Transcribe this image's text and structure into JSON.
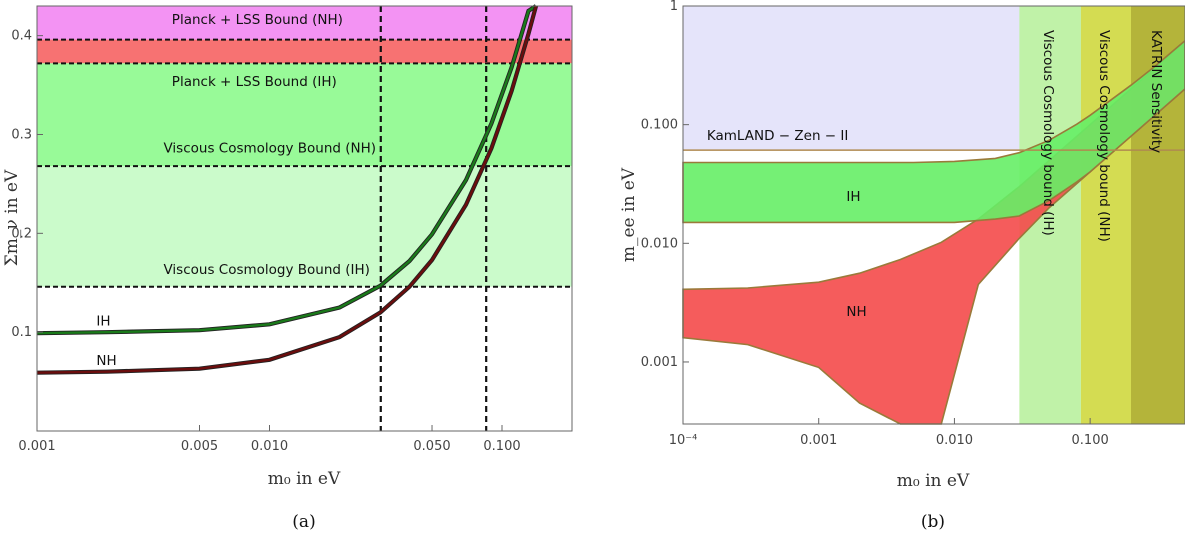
{
  "chart_data": [
    {
      "id": "a",
      "type": "line",
      "caption": "(a)",
      "xlabel": "m₀ in eV",
      "ylabel": "Σm_ν in eV",
      "xscale": "log",
      "xlim": [
        0.001,
        0.2
      ],
      "ylim": [
        0.0,
        0.43
      ],
      "grid": false,
      "xticks": [
        {
          "v": 0.001,
          "t": "0.001"
        },
        {
          "v": 0.005,
          "t": "0.005"
        },
        {
          "v": 0.01,
          "t": "0.010"
        },
        {
          "v": 0.05,
          "t": "0.050"
        },
        {
          "v": 0.1,
          "t": "0.100"
        }
      ],
      "yticks": [
        {
          "v": 0.1,
          "t": "0.1"
        },
        {
          "v": 0.2,
          "t": "0.2"
        },
        {
          "v": 0.3,
          "t": "0.3"
        },
        {
          "v": 0.4,
          "t": "0.4"
        }
      ],
      "bands": [
        {
          "name": "Planck + LSS Bound (NH)",
          "y": [
            0.396,
            0.43
          ],
          "color": "#f393f3",
          "label_at": [
            0.0038,
            0.417
          ]
        },
        {
          "name": "",
          "y": [
            0.372,
            0.396
          ],
          "color": "#f77272"
        },
        {
          "name": "Planck + LSS Bound (IH)",
          "y": [
            0.268,
            0.372
          ],
          "color": "#98fa98",
          "label_at": [
            0.0038,
            0.354
          ]
        },
        {
          "name": "Viscous Cosmology Bound (NH)",
          "y": [
            0.146,
            0.268
          ],
          "color": "#cbfbcb",
          "label_at": [
            0.0035,
            0.287
          ]
        },
        {
          "name": "Viscous Cosmology Bound (IH)",
          "y": [
            0,
            0
          ],
          "color": "none",
          "label_at": [
            0.0035,
            0.164
          ]
        }
      ],
      "hlines": [
        0.396,
        0.372,
        0.268,
        0.146
      ],
      "vlines": [
        0.0301,
        0.0855
      ],
      "series": [
        {
          "name": "IH",
          "color": "#1a7a1a",
          "label_at": [
            0.0018,
            0.112
          ],
          "x": [
            0.001,
            0.002,
            0.005,
            0.01,
            0.02,
            0.03,
            0.04,
            0.05,
            0.07,
            0.09,
            0.11,
            0.13,
            0.14
          ],
          "y": [
            0.099,
            0.1,
            0.102,
            0.108,
            0.125,
            0.147,
            0.172,
            0.199,
            0.254,
            0.311,
            0.368,
            0.425,
            0.43
          ]
        },
        {
          "name": "NH",
          "color": "#6b0d0d",
          "label_at": [
            0.0018,
            0.072
          ],
          "x": [
            0.001,
            0.002,
            0.005,
            0.01,
            0.02,
            0.03,
            0.04,
            0.05,
            0.07,
            0.09,
            0.11,
            0.13,
            0.14
          ],
          "y": [
            0.059,
            0.06,
            0.063,
            0.072,
            0.095,
            0.12,
            0.146,
            0.173,
            0.229,
            0.286,
            0.344,
            0.402,
            0.43
          ]
        }
      ]
    },
    {
      "id": "b",
      "type": "area",
      "caption": "(b)",
      "xlabel": "m₀ in eV",
      "ylabel": "m_ee in eV",
      "xscale": "log",
      "yscale": "log",
      "xlim": [
        0.0001,
        0.5
      ],
      "ylim": [
        0.0003,
        1
      ],
      "grid": false,
      "xticks": [
        {
          "v": 0.0001,
          "t": "10⁻⁴"
        },
        {
          "v": 0.001,
          "t": "0.001"
        },
        {
          "v": 0.01,
          "t": "0.010"
        },
        {
          "v": 0.1,
          "t": "0.100"
        }
      ],
      "yticks": [
        {
          "v": 0.001,
          "t": "0.001"
        },
        {
          "v": 0.01,
          "t": "0.010"
        },
        {
          "v": 0.1,
          "t": "0.100"
        },
        {
          "v": 1,
          "t": "1"
        }
      ],
      "kamland_bound": 0.061,
      "vbands": [
        {
          "name": "Viscous Cosmology bound (IH)",
          "x": [
            0.0301,
            0.0855
          ],
          "color": "#c0f2a8"
        },
        {
          "name": "Viscous Cosmology bound (NH)",
          "x": [
            0.0855,
            0.2
          ],
          "color": "#d4dc52"
        },
        {
          "name": "KATRIN Sensitivity",
          "x": [
            0.2,
            0.5
          ],
          "color": "#b4b43a"
        }
      ],
      "labels": [
        {
          "t": "KamLAND − Zen − II",
          "at": [
            0.00015,
            0.082
          ]
        },
        {
          "t": "IH",
          "at": [
            0.0016,
            0.025
          ]
        },
        {
          "t": "NH",
          "at": [
            0.0016,
            0.0027
          ]
        }
      ],
      "IH_band": {
        "color": "#66ee66",
        "x": [
          0.0001,
          0.001,
          0.005,
          0.01,
          0.02,
          0.03,
          0.05,
          0.08,
          0.1,
          0.2,
          0.3,
          0.5
        ],
        "upper": [
          0.048,
          0.048,
          0.048,
          0.049,
          0.052,
          0.058,
          0.074,
          0.101,
          0.12,
          0.215,
          0.31,
          0.51
        ],
        "lower": [
          0.015,
          0.015,
          0.015,
          0.015,
          0.016,
          0.017,
          0.023,
          0.033,
          0.04,
          0.08,
          0.12,
          0.2
        ]
      },
      "NH_band": {
        "color": "#f44a4a",
        "x": [
          0.0001,
          0.0003,
          0.001,
          0.002,
          0.004,
          0.008,
          0.015,
          0.03,
          0.05,
          0.1,
          0.2,
          0.3,
          0.5
        ],
        "upper": [
          0.0041,
          0.0042,
          0.0047,
          0.0056,
          0.0073,
          0.0102,
          0.016,
          0.03,
          0.05,
          0.1,
          0.2,
          0.3,
          0.5
        ],
        "lower": [
          0.0016,
          0.0014,
          0.0009,
          0.00045,
          0.0003,
          0.0003,
          0.0045,
          0.011,
          0.02,
          0.04,
          0.08,
          0.12,
          0.2
        ]
      }
    }
  ]
}
